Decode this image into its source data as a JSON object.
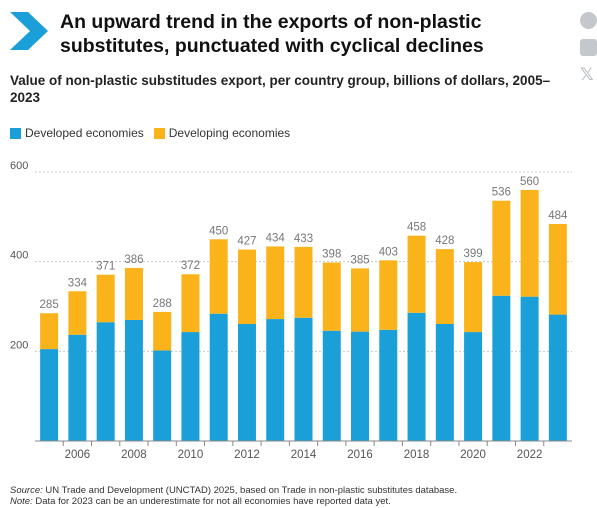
{
  "header": {
    "title": "An upward trend in the exports of non-plastic substitutes, punctuated with cyclical declines",
    "subtitle": "Value of non-plastic substitudes export, per country group, billions of dollars, 2005–2023"
  },
  "share_icons": [
    "facebook-icon",
    "linkedin-icon",
    "x-icon"
  ],
  "colors": {
    "brand": "#1a9fd8",
    "developed": "#1a9fd8",
    "developing": "#fbb31b"
  },
  "legend": {
    "developed": "Developed economies",
    "developing": "Developing economies"
  },
  "chart_data": {
    "type": "bar",
    "stacked": true,
    "x": [
      2005,
      2006,
      2007,
      2008,
      2009,
      2010,
      2011,
      2012,
      2013,
      2014,
      2015,
      2016,
      2017,
      2018,
      2019,
      2020,
      2021,
      2022,
      2023
    ],
    "x_tick_labels": [
      "2006",
      "2008",
      "2010",
      "2012",
      "2014",
      "2016",
      "2018",
      "2020",
      "2022"
    ],
    "series": [
      {
        "name": "Developed economies",
        "color": "#1a9fd8",
        "values": [
          205,
          237,
          265,
          270,
          202,
          243,
          284,
          261,
          272,
          275,
          246,
          244,
          248,
          286,
          261,
          243,
          324,
          322,
          282
        ]
      },
      {
        "name": "Developing economies",
        "color": "#fbb31b",
        "values": [
          80,
          97,
          106,
          116,
          86,
          129,
          166,
          166,
          162,
          158,
          152,
          141,
          155,
          172,
          167,
          156,
          212,
          238,
          202
        ]
      }
    ],
    "totals": [
      285,
      334,
      371,
      386,
      288,
      372,
      450,
      427,
      434,
      433,
      398,
      385,
      403,
      458,
      428,
      399,
      536,
      560,
      484
    ],
    "yticks": [
      200,
      400,
      600
    ],
    "ylim": [
      0,
      600
    ],
    "grid": true,
    "legend_position": "top-left"
  },
  "footer": {
    "source_label": "Source:",
    "source_text": " UN Trade and Development (UNCTAD) 2025, based on Trade in non-plastic substitutes database.",
    "note_label": "Note:",
    "note_text": " Data for 2023 can be an underestimate for not all economies have reported data yet."
  }
}
